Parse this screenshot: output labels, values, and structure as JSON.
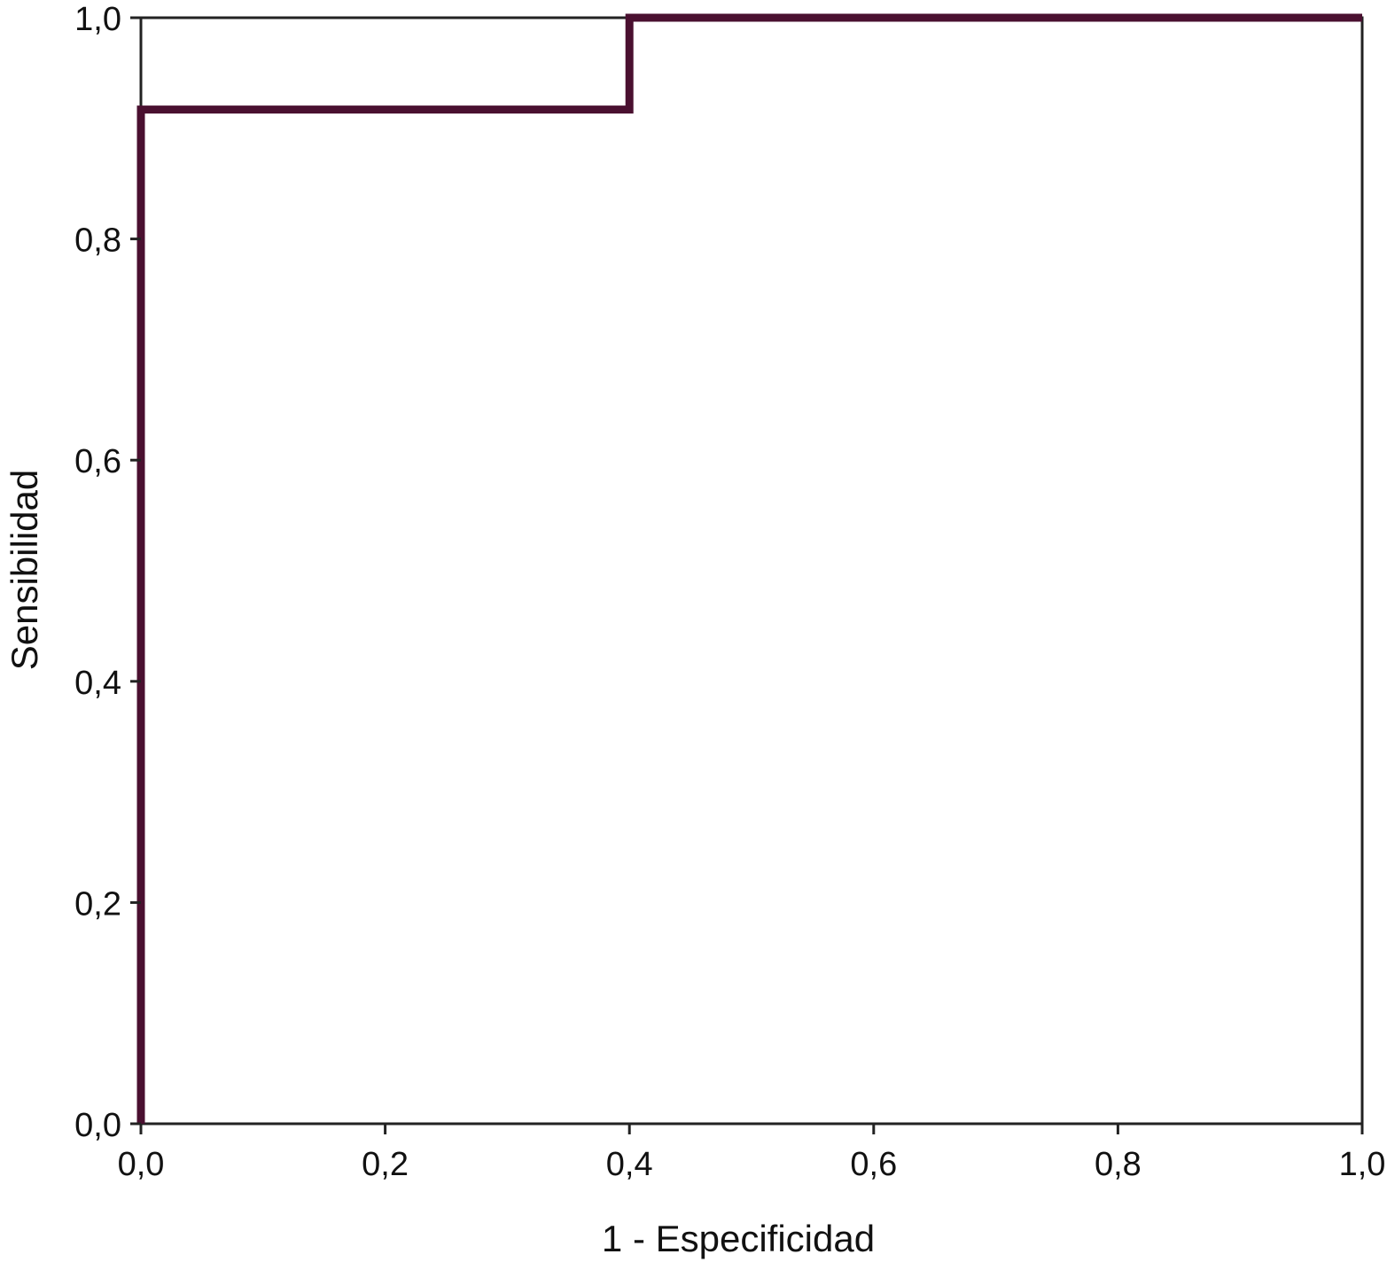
{
  "chart_data": {
    "type": "line",
    "title": "",
    "xlabel": "1 - Especificidad",
    "ylabel": "Sensibilidad",
    "xlim": [
      0,
      1
    ],
    "ylim": [
      0,
      1
    ],
    "x_ticks": [
      "0,0",
      "0,2",
      "0,4",
      "0,6",
      "0,8",
      "1,0"
    ],
    "y_ticks": [
      "0,0",
      "0,2",
      "0,4",
      "0,6",
      "0,8",
      "1,0"
    ],
    "grid": false,
    "legend": "none",
    "series": [
      {
        "color": "#4a1030",
        "step": true,
        "x": [
          0.0,
          0.0,
          0.4,
          0.4,
          1.0
        ],
        "y": [
          0.0,
          0.917,
          0.917,
          1.0,
          1.0
        ]
      },
      {
        "color": "#222222",
        "step": true,
        "x": [
          0.0,
          0.0,
          1.0
        ],
        "y": [
          0.0,
          1.0,
          1.0
        ]
      }
    ]
  }
}
